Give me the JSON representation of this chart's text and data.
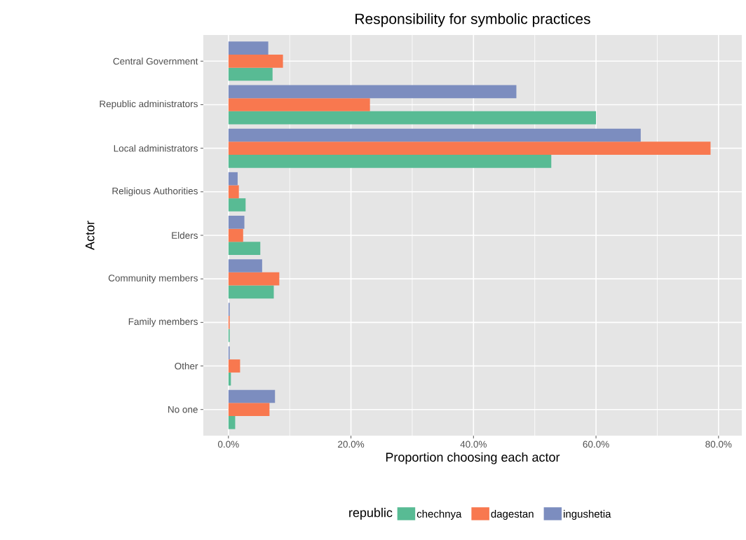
{
  "chart_data": {
    "type": "bar",
    "orientation": "horizontal",
    "title": "Responsibility for symbolic practices",
    "xlabel": "Proportion choosing each actor",
    "ylabel": "Actor",
    "legend_title": "republic",
    "categories": [
      "Central Government",
      "Republic administrators",
      "Local administrators",
      "Religious Authorities",
      "Elders",
      "Community members",
      "Family members",
      "Other",
      "No one"
    ],
    "series": [
      {
        "name": "chechnya",
        "color": "#58bb94",
        "values": [
          7.2,
          60.0,
          52.7,
          2.8,
          5.2,
          7.4,
          0.2,
          0.4,
          1.1
        ]
      },
      {
        "name": "dagestan",
        "color": "#f8784f",
        "values": [
          8.9,
          23.1,
          78.7,
          1.7,
          2.4,
          8.3,
          0.2,
          1.9,
          6.7
        ]
      },
      {
        "name": "ingushetia",
        "color": "#7c8dbf",
        "values": [
          6.5,
          47.0,
          67.3,
          1.5,
          2.6,
          5.5,
          0.2,
          0.2,
          7.6
        ]
      }
    ],
    "xlim": [
      -4.1,
      83.8
    ],
    "xticks": [
      {
        "value": 0,
        "label": "0.0%"
      },
      {
        "value": 10,
        "label": null
      },
      {
        "value": 20,
        "label": "20.0%"
      },
      {
        "value": 30,
        "label": null
      },
      {
        "value": 40,
        "label": "40.0%"
      },
      {
        "value": 50,
        "label": null
      },
      {
        "value": 60,
        "label": "60.0%"
      },
      {
        "value": 70,
        "label": null
      },
      {
        "value": 80,
        "label": "80.0%"
      }
    ],
    "grid": true,
    "legend": "bottom"
  }
}
